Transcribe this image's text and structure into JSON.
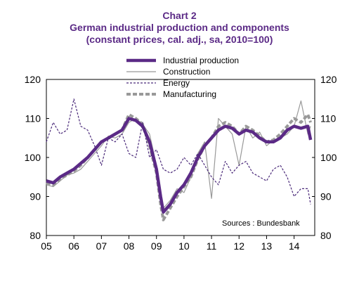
{
  "chart_data": {
    "type": "line",
    "title_line1": "Chart 2",
    "title_line2": "German industrial production and components",
    "title_line3": "(constant prices, cal. adj., sa, 2010=100)",
    "source": "Sources :  Bundesbank",
    "x_ticks": [
      "05",
      "06",
      "07",
      "08",
      "09",
      "10",
      "11",
      "12",
      "13",
      "14"
    ],
    "y_ticks": [
      "80",
      "90",
      "100",
      "110",
      "120"
    ],
    "ylim": [
      80,
      120
    ],
    "xlim": [
      2005.0,
      2014.75
    ],
    "legend_position": "top-center",
    "x": [
      2005.0,
      2005.25,
      2005.5,
      2005.75,
      2006.0,
      2006.25,
      2006.5,
      2006.75,
      2007.0,
      2007.25,
      2007.5,
      2007.75,
      2008.0,
      2008.25,
      2008.5,
      2008.75,
      2009.0,
      2009.15,
      2009.25,
      2009.5,
      2009.75,
      2010.0,
      2010.25,
      2010.5,
      2010.75,
      2011.0,
      2011.25,
      2011.5,
      2011.75,
      2012.0,
      2012.25,
      2012.5,
      2012.75,
      2013.0,
      2013.25,
      2013.5,
      2013.75,
      2014.0,
      2014.25,
      2014.5,
      2014.6
    ],
    "series": [
      {
        "name": "Industrial production",
        "color": "#5b2a86",
        "style": "thick",
        "values": [
          94,
          93.5,
          95,
          96,
          97,
          98.5,
          100,
          102,
          104,
          105,
          106,
          107,
          110,
          109.5,
          108,
          104,
          97,
          90,
          86,
          88,
          91,
          93,
          96,
          100,
          103,
          105,
          107,
          108,
          107.5,
          106,
          107,
          106.5,
          105,
          104,
          104,
          105,
          107,
          108,
          107.5,
          108,
          104.5
        ]
      },
      {
        "name": "Construction",
        "color": "#999999",
        "style": "thin",
        "values": [
          93,
          92.5,
          94,
          95.5,
          96,
          97,
          99,
          101,
          103,
          105.5,
          105,
          106,
          109,
          110,
          108.5,
          106,
          98,
          91,
          87,
          89,
          92,
          91,
          95,
          101,
          104,
          89.5,
          110,
          108,
          106,
          98,
          108,
          105,
          106.5,
          103,
          104.5,
          105,
          106,
          108,
          114.5,
          106,
          108
        ]
      },
      {
        "name": "Energy",
        "color": "#4b2a7a",
        "style": "dashed",
        "values": [
          104,
          109,
          106,
          107,
          115,
          108,
          107,
          103,
          98,
          105,
          104,
          106,
          101,
          100,
          109,
          100,
          102,
          99,
          97,
          96,
          97,
          100,
          98,
          101,
          98,
          95,
          93,
          99,
          96,
          98,
          99,
          96,
          95,
          94,
          97,
          98,
          95,
          90,
          92,
          92,
          88
        ]
      },
      {
        "name": "Manufacturing",
        "color": "#999999",
        "style": "thickdash",
        "values": [
          93.5,
          93,
          94.5,
          95.5,
          96.5,
          98,
          100,
          102,
          104,
          105,
          106,
          107,
          111,
          110,
          108.5,
          103,
          96,
          88,
          84,
          87,
          90,
          92.5,
          95,
          99.5,
          103,
          105,
          108,
          109,
          108,
          106,
          108,
          107,
          105.5,
          104,
          104.5,
          106,
          108,
          110,
          109,
          111,
          109
        ]
      }
    ]
  }
}
